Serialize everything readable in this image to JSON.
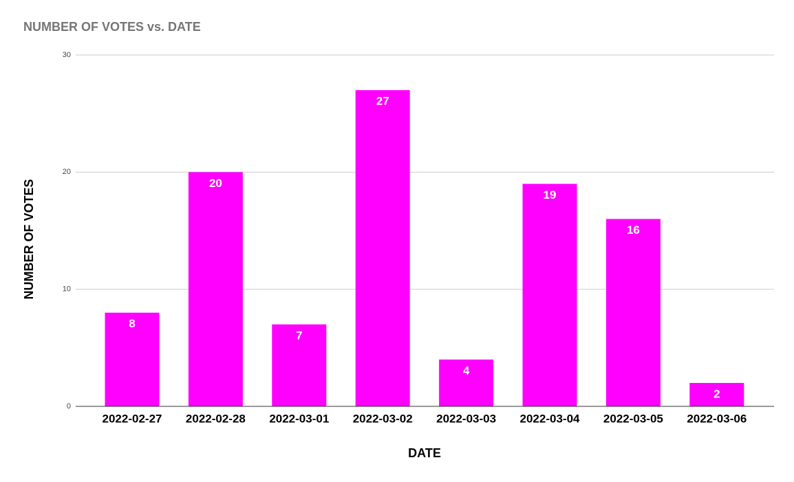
{
  "chart_data": {
    "type": "bar",
    "title": "NUMBER OF VOTES vs. DATE",
    "x_label": "DATE",
    "y_label": "NUMBER OF VOTES",
    "categories": [
      "2022-02-27",
      "2022-02-28",
      "2022-03-01",
      "2022-03-02",
      "2022-03-03",
      "2022-03-04",
      "2022-03-05",
      "2022-03-06"
    ],
    "values": [
      8,
      20,
      7,
      27,
      4,
      19,
      16,
      2
    ],
    "color": "#ff00ff",
    "ylim": [
      0,
      30
    ],
    "yticks": [
      0,
      10,
      20,
      30
    ],
    "grid": true,
    "data_labels": true
  }
}
